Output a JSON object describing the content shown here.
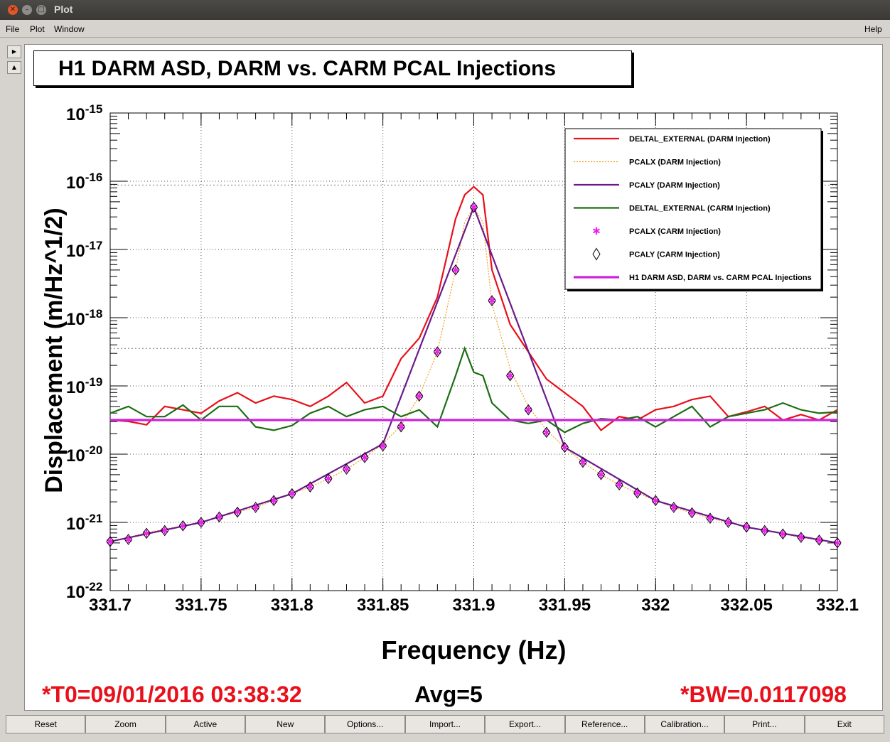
{
  "window": {
    "title": "Plot"
  },
  "menu": {
    "file": "File",
    "plot": "Plot",
    "window": "Window",
    "help": "Help"
  },
  "plot_title": "H1 DARM ASD, DARM vs. CARM PCAL Injections",
  "footer": {
    "t0": "*T0=09/01/2016 03:38:32",
    "avg": "Avg=5",
    "bw": "*BW=0.0117098"
  },
  "buttons": [
    "Reset",
    "Zoom",
    "Active",
    "New",
    "Options...",
    "Import...",
    "Export...",
    "Reference...",
    "Calibration...",
    "Print...",
    "Exit"
  ],
  "chart_data": {
    "type": "line",
    "xlabel": "Frequency (Hz)",
    "ylabel": "Displacement (m/Hz^1/2)",
    "xlim": [
      331.7,
      332.1
    ],
    "ylim_log10": [
      -22,
      -15
    ],
    "yscale": "log",
    "grid": true,
    "legend_position": "top-right",
    "x_ticks": [
      "331.7",
      "331.75",
      "331.8",
      "331.85",
      "331.9",
      "331.95",
      "332",
      "332.05",
      "332.1"
    ],
    "y_tick_exponents": [
      "-22",
      "-21",
      "-20",
      "-19",
      "-18",
      "-17",
      "-16",
      "-15"
    ],
    "series": [
      {
        "name": "DELTAL_EXTERNAL (DARM Injection)",
        "color": "#e8101a",
        "style": "solid",
        "x": [
          331.7,
          331.71,
          331.72,
          331.73,
          331.74,
          331.75,
          331.76,
          331.77,
          331.78,
          331.79,
          331.8,
          331.81,
          331.82,
          331.83,
          331.84,
          331.85,
          331.86,
          331.87,
          331.88,
          331.89,
          331.895,
          331.9,
          331.905,
          331.91,
          331.92,
          331.93,
          331.94,
          331.95,
          331.96,
          331.97,
          331.98,
          331.99,
          332,
          332.01,
          332.02,
          332.03,
          332.04,
          332.05,
          332.06,
          332.07,
          332.08,
          332.09,
          332.1
        ],
        "y": [
          -19.5,
          -19.52,
          -19.57,
          -19.3,
          -19.35,
          -19.4,
          -19.22,
          -19.1,
          -19.25,
          -19.15,
          -19.2,
          -19.3,
          -19.15,
          -18.95,
          -19.25,
          -19.15,
          -18.6,
          -18.3,
          -17.7,
          -16.55,
          -16.2,
          -16.08,
          -16.2,
          -17.3,
          -18.1,
          -18.5,
          -18.9,
          -19.1,
          -19.3,
          -19.65,
          -19.45,
          -19.5,
          -19.35,
          -19.3,
          -19.2,
          -19.15,
          -19.45,
          -19.38,
          -19.3,
          -19.5,
          -19.42,
          -19.5,
          -19.35
        ]
      },
      {
        "name": "PCALX (DARM Injection)",
        "color": "#f0a020",
        "style": "dotted",
        "x": [
          331.7,
          331.71,
          331.72,
          331.73,
          331.74,
          331.75,
          331.76,
          331.77,
          331.78,
          331.79,
          331.8,
          331.81,
          331.82,
          331.83,
          331.84,
          331.85,
          331.86,
          331.87,
          331.88,
          331.89,
          331.895,
          331.9,
          331.905,
          331.91,
          331.92,
          331.93,
          331.94,
          331.95,
          331.96,
          331.97,
          331.98,
          331.99,
          332,
          332.01,
          332.02,
          332.03,
          332.04,
          332.05,
          332.06,
          332.07,
          332.08,
          332.09,
          332.1
        ],
        "y": [
          -21.28,
          -21.22,
          -21.15,
          -21.1,
          -21.05,
          -21.0,
          -20.92,
          -20.85,
          -20.78,
          -20.68,
          -20.58,
          -20.48,
          -20.36,
          -20.22,
          -20.05,
          -19.85,
          -19.58,
          -19.15,
          -18.5,
          -17.3,
          -16.6,
          -16.38,
          -16.6,
          -17.8,
          -18.75,
          -19.3,
          -19.65,
          -19.9,
          -20.12,
          -20.3,
          -20.45,
          -20.57,
          -20.68,
          -20.78,
          -20.86,
          -20.94,
          -21.0,
          -21.07,
          -21.12,
          -21.17,
          -21.22,
          -21.26,
          -21.3
        ]
      },
      {
        "name": "PCALY (DARM Injection)",
        "color": "#6a1a8a",
        "style": "solid",
        "x": [
          331.7,
          331.75,
          331.8,
          331.85,
          331.9,
          331.95,
          332,
          332.05,
          332.1
        ],
        "y": [
          -21.28,
          -21.0,
          -20.58,
          -19.85,
          -16.38,
          -19.9,
          -20.68,
          -21.07,
          -21.3
        ]
      },
      {
        "name": "DELTAL_EXTERNAL (CARM Injection)",
        "color": "#1a6e12",
        "style": "solid",
        "x": [
          331.7,
          331.71,
          331.72,
          331.73,
          331.74,
          331.75,
          331.76,
          331.77,
          331.78,
          331.79,
          331.8,
          331.81,
          331.82,
          331.83,
          331.84,
          331.85,
          331.86,
          331.87,
          331.88,
          331.89,
          331.895,
          331.9,
          331.905,
          331.91,
          331.92,
          331.93,
          331.94,
          331.95,
          331.96,
          331.97,
          331.98,
          331.99,
          332,
          332.01,
          332.02,
          332.03,
          332.04,
          332.05,
          332.06,
          332.07,
          332.08,
          332.09,
          332.1
        ],
        "y": [
          -19.4,
          -19.3,
          -19.45,
          -19.45,
          -19.28,
          -19.5,
          -19.3,
          -19.3,
          -19.6,
          -19.65,
          -19.58,
          -19.4,
          -19.3,
          -19.45,
          -19.35,
          -19.3,
          -19.45,
          -19.35,
          -19.6,
          -18.85,
          -18.45,
          -18.8,
          -18.85,
          -19.25,
          -19.5,
          -19.55,
          -19.5,
          -19.68,
          -19.55,
          -19.48,
          -19.5,
          -19.45,
          -19.6,
          -19.45,
          -19.3,
          -19.6,
          -19.45,
          -19.4,
          -19.35,
          -19.25,
          -19.35,
          -19.4,
          -19.38
        ]
      },
      {
        "name": "PCALX (CARM Injection)",
        "color": "#ee22ee",
        "style": "marker-star",
        "x": [
          331.7,
          331.71,
          331.72,
          331.73,
          331.74,
          331.75,
          331.76,
          331.77,
          331.78,
          331.79,
          331.8,
          331.81,
          331.82,
          331.83,
          331.84,
          331.85,
          331.86,
          331.87,
          331.88,
          331.89,
          331.9,
          331.91,
          331.92,
          331.93,
          331.94,
          331.95,
          331.96,
          331.97,
          331.98,
          331.99,
          332,
          332.01,
          332.02,
          332.03,
          332.04,
          332.05,
          332.06,
          332.07,
          332.08,
          332.09,
          332.1
        ],
        "y": [
          -21.28,
          -21.25,
          -21.16,
          -21.12,
          -21.05,
          -21.0,
          -20.92,
          -20.85,
          -20.78,
          -20.68,
          -20.58,
          -20.48,
          -20.36,
          -20.22,
          -20.05,
          -19.88,
          -19.6,
          -19.15,
          -18.5,
          -17.3,
          -16.38,
          -17.75,
          -18.85,
          -19.35,
          -19.68,
          -19.9,
          -20.12,
          -20.3,
          -20.45,
          -20.57,
          -20.68,
          -20.78,
          -20.86,
          -20.94,
          -21.0,
          -21.07,
          -21.12,
          -21.17,
          -21.22,
          -21.26,
          -21.3
        ]
      },
      {
        "name": "PCALY (CARM Injection)",
        "color": "#000000",
        "style": "marker-diamond",
        "x": [
          331.7,
          331.71,
          331.72,
          331.73,
          331.74,
          331.75,
          331.76,
          331.77,
          331.78,
          331.79,
          331.8,
          331.81,
          331.82,
          331.83,
          331.84,
          331.85,
          331.86,
          331.87,
          331.88,
          331.89,
          331.9,
          331.91,
          331.92,
          331.93,
          331.94,
          331.95,
          331.96,
          331.97,
          331.98,
          331.99,
          332,
          332.01,
          332.02,
          332.03,
          332.04,
          332.05,
          332.06,
          332.07,
          332.08,
          332.09,
          332.1
        ],
        "y": [
          -21.28,
          -21.25,
          -21.16,
          -21.12,
          -21.05,
          -21.0,
          -20.92,
          -20.85,
          -20.78,
          -20.68,
          -20.58,
          -20.48,
          -20.36,
          -20.22,
          -20.05,
          -19.88,
          -19.6,
          -19.15,
          -18.5,
          -17.3,
          -16.38,
          -17.75,
          -18.85,
          -19.35,
          -19.68,
          -19.9,
          -20.12,
          -20.3,
          -20.45,
          -20.57,
          -20.68,
          -20.78,
          -20.86,
          -20.94,
          -21.0,
          -21.07,
          -21.12,
          -21.17,
          -21.22,
          -21.26,
          -21.3
        ]
      },
      {
        "name": "H1 DARM ASD, DARM vs. CARM PCAL Injections",
        "color": "#cc22dd",
        "style": "solid-thick",
        "x": [
          331.7,
          332.1
        ],
        "y": [
          -19.5,
          -19.5
        ]
      }
    ]
  }
}
